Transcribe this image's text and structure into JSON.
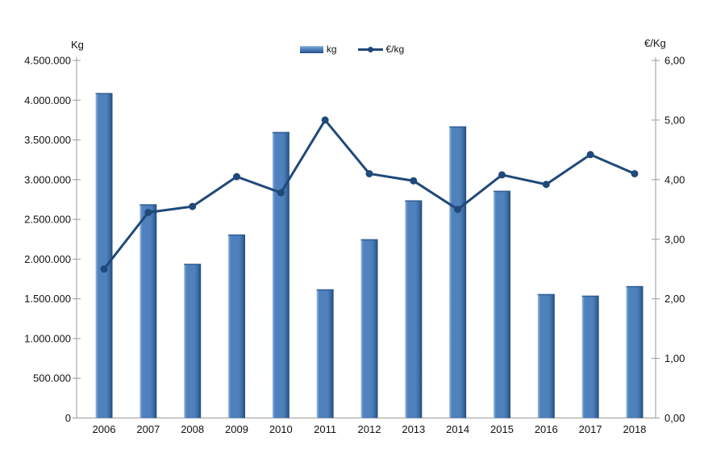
{
  "chart_data": {
    "type": "combo-bar-line",
    "title": "",
    "categories": [
      "2006",
      "2007",
      "2008",
      "2009",
      "2010",
      "2011",
      "2012",
      "2013",
      "2014",
      "2015",
      "2016",
      "2017",
      "2018"
    ],
    "series": [
      {
        "name": "kg",
        "type": "bar",
        "axis": "left",
        "values": [
          4090000,
          2690000,
          1940000,
          2310000,
          3600000,
          1620000,
          2250000,
          2740000,
          3670000,
          2860000,
          1560000,
          1540000,
          1660000
        ]
      },
      {
        "name": "€/kg",
        "type": "line",
        "axis": "right",
        "values": [
          2.5,
          3.45,
          3.55,
          4.05,
          3.78,
          5.0,
          4.1,
          3.98,
          3.5,
          4.08,
          3.92,
          4.42,
          4.1
        ]
      }
    ],
    "left_axis": {
      "title": "Kg",
      "min": 0,
      "max": 4500000,
      "step": 500000,
      "tick_labels": [
        "0",
        "500.000",
        "1.000.000",
        "1.500.000",
        "2.000.000",
        "2.500.000",
        "3.000.000",
        "3.500.000",
        "4.000.000",
        "4.500.000"
      ]
    },
    "right_axis": {
      "title": "€/Kg",
      "min": 0,
      "max": 6,
      "step": 1,
      "tick_labels": [
        "0,00",
        "1,00",
        "2,00",
        "3,00",
        "4,00",
        "5,00",
        "6,00"
      ]
    },
    "legend": {
      "position": "top-center",
      "items": [
        {
          "label": "kg",
          "swatch": "bar"
        },
        {
          "label": "€/kg",
          "swatch": "line-marker"
        }
      ]
    },
    "grid": "off",
    "colors": {
      "bar_fill": "#4f81bd",
      "bar_highlight": "#a9c5e5",
      "bar_mid": "#6e98cd",
      "bar_dark": "#2d5a92",
      "bar_edge": "#1f4979",
      "line": "#1f4979",
      "axis": "#9b9b9b",
      "text": "#111111",
      "background": "#ffffff"
    }
  }
}
